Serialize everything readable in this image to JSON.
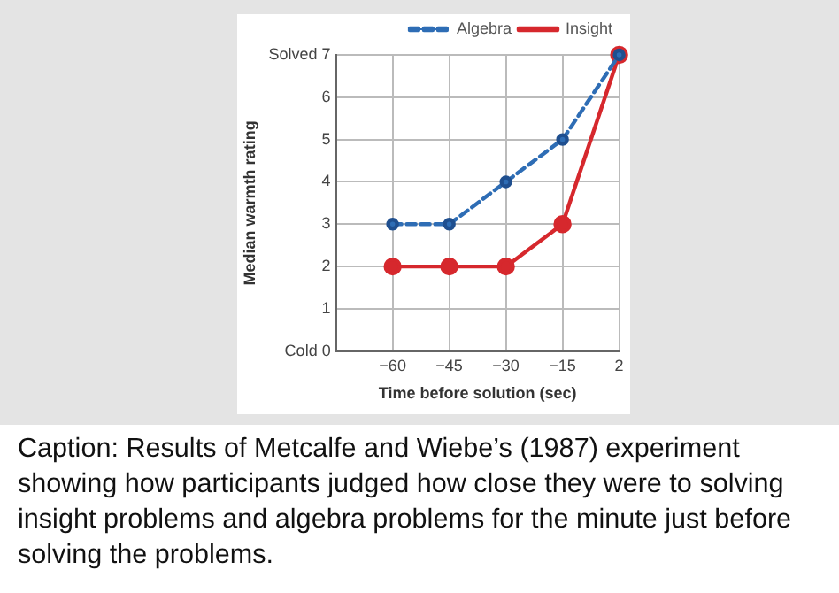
{
  "chart_data": {
    "type": "line",
    "xlabel": "Time before solution (sec)",
    "ylabel": "Median warmth rating",
    "categories": [
      "−60",
      "−45",
      "−30",
      "−15",
      "2"
    ],
    "series": [
      {
        "name": "Algebra",
        "color": "#2e6db5",
        "values": [
          3,
          3,
          4,
          5,
          7
        ],
        "line_style": "dashed"
      },
      {
        "name": "Insight",
        "color": "#d6282d",
        "values": [
          2,
          2,
          2,
          3,
          7
        ],
        "line_style": "solid"
      }
    ],
    "ylim": [
      0,
      7
    ],
    "yticks": [
      {
        "value": 0,
        "label": "Cold 0"
      },
      1,
      2,
      3,
      4,
      5,
      6,
      {
        "value": 7,
        "label": "Solved 7"
      }
    ],
    "grid": true,
    "legend": "top right",
    "marker": "circle",
    "annotations": [
      "Caption: Results of Metcalfe and Wiebe’s (1987) experiment showing how participants judged how close they were to solving insight problems and algebra problems for the minute just before solving the problems."
    ]
  }
}
